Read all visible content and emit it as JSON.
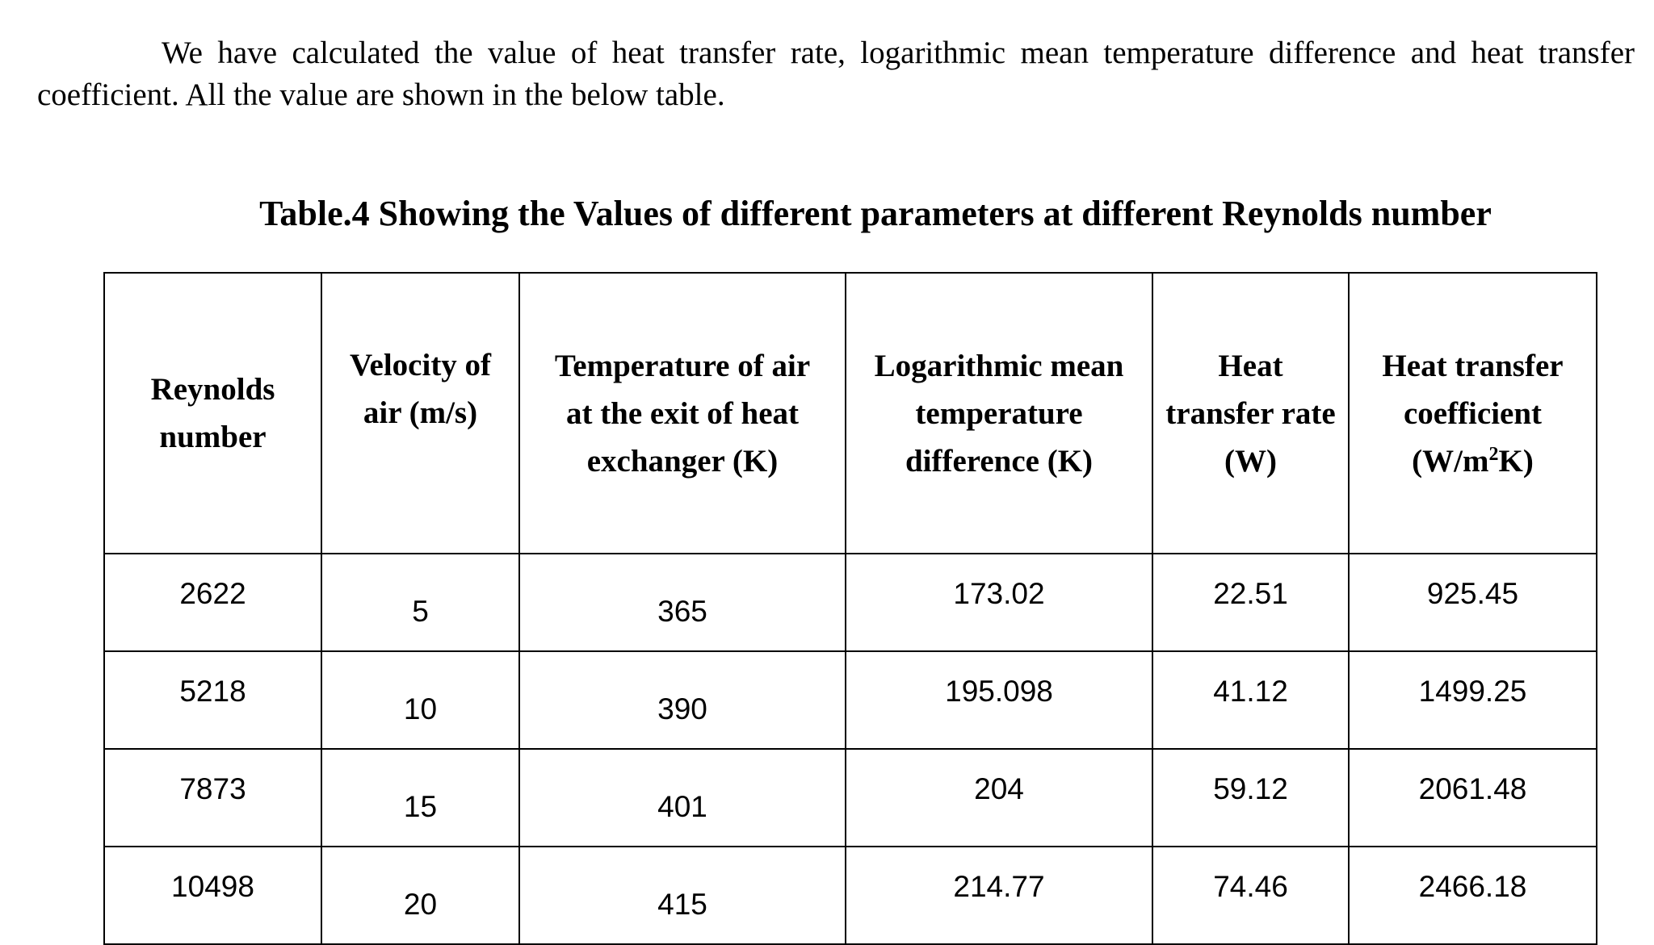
{
  "paragraph": "We have calculated the value of heat transfer rate, logarithmic mean temperature difference and heat transfer coefficient. All the value are shown in the below table.",
  "table": {
    "caption": "Table.4 Showing the Values of different parameters at different Reynolds number",
    "headers": [
      [
        "Reynolds",
        "number"
      ],
      [
        "Velocity of",
        "air (m/s)"
      ],
      [
        "Temperature of air",
        "at the exit of heat",
        "exchanger (K)"
      ],
      [
        "Logarithmic mean",
        "temperature",
        "difference (K)"
      ],
      [
        "Heat",
        "transfer rate",
        "(W)"
      ],
      [
        "Heat transfer",
        "coefficient",
        "(W/m",
        "2",
        "K)"
      ]
    ],
    "rows": [
      [
        "2622",
        "5",
        "365",
        "173.02",
        "22.51",
        "925.45"
      ],
      [
        "5218",
        "10",
        "390",
        "195.098",
        "41.12",
        "1499.25"
      ],
      [
        "7873",
        "15",
        "401",
        "204",
        "59.12",
        "2061.48"
      ],
      [
        "10498",
        "20",
        "415",
        "214.77",
        "74.46",
        "2466.18"
      ]
    ]
  }
}
